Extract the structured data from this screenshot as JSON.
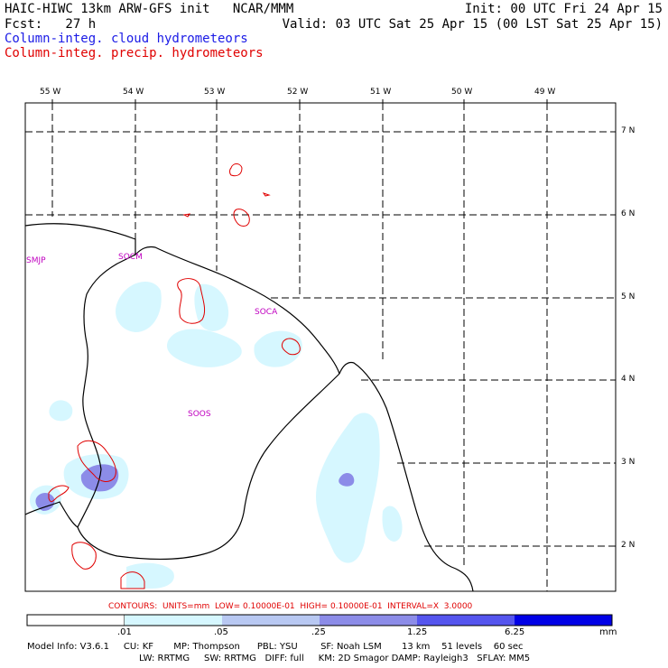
{
  "header": {
    "title": "HAIC-HIWC 13km ARW-GFS init   NCAR/MMM",
    "init": "Init: 00 UTC Fri 24 Apr 15",
    "fcst": "Fcst:   27 h",
    "valid": "Valid: 03 UTC Sat 25 Apr 15 (00 LST Sat 25 Apr 15)",
    "field_cloud": "Column-integ. cloud hydrometeors",
    "field_precip": "Column-integ. precip. hydrometeors"
  },
  "colors": {
    "cloud_text": "#1a1ae6",
    "precip_text": "#e00000",
    "coast": "#000000",
    "grid": "#000000",
    "station": "#c000c0",
    "contour": "#e00000",
    "shade_1": "#d6f7ff",
    "shade_2": "#b8c8f2",
    "shade_3": "#8c8ce8",
    "shade_4": "#5555ee",
    "shade_5": "#0000e6"
  },
  "map": {
    "lon_labels": [
      "55 W",
      "54 W",
      "53 W",
      "52 W",
      "51 W",
      "50 W",
      "49 W"
    ],
    "lat_labels": [
      "7 N",
      "6 N",
      "5 N",
      "4 N",
      "3 N",
      "2 N"
    ],
    "stations": [
      "SMJP",
      "SOCM",
      "SOCA",
      "SOOS"
    ]
  },
  "contours_line": "CONTOURS:  UNITS=mm  LOW= 0.10000E-01  HIGH= 0.10000E-01  INTERVAL=X  3.0000",
  "colorbar": {
    "ticks": [
      ".01",
      ".05",
      ".25",
      "1.25",
      "6.25"
    ],
    "unit": "mm"
  },
  "model_info": {
    "line1": "Model Info: V3.6.1     CU: KF       MP: Thompson      PBL: YSU        SF: Noah LSM       13 km    51 levels    60 sec",
    "line2": "LW: RRTMG     SW: RRTMG   DIFF: full     KM: 2D Smagor DAMP: Rayleigh3   SFLAY: MM5"
  }
}
